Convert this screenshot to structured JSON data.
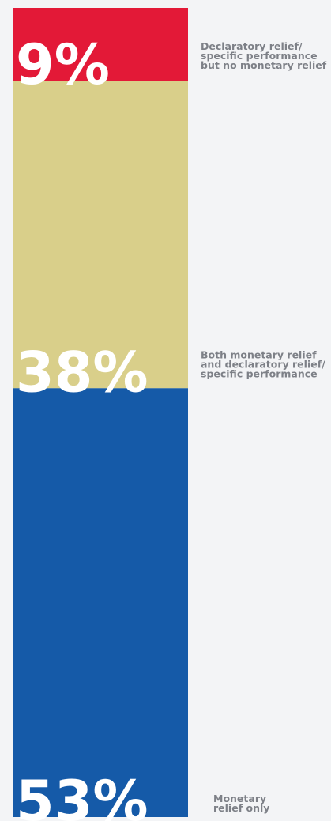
{
  "chart_data": {
    "type": "bar",
    "stacked": true,
    "unit": "%",
    "segments": [
      {
        "value": 9,
        "label_text": "9%",
        "lines": [
          "Declaratory relief/",
          "specific performance",
          "but no monetary relief"
        ],
        "color": "#e31937"
      },
      {
        "value": 38,
        "label_text": "38%",
        "lines": [
          "Both monetary relief",
          "and declaratory relief/",
          "specific performance"
        ],
        "color": "#d9cf8a"
      },
      {
        "value": 53,
        "label_text": "53%",
        "lines": [
          "Monetary",
          "relief only"
        ],
        "color": "#155aa8"
      }
    ]
  },
  "background": "#f3f4f6"
}
